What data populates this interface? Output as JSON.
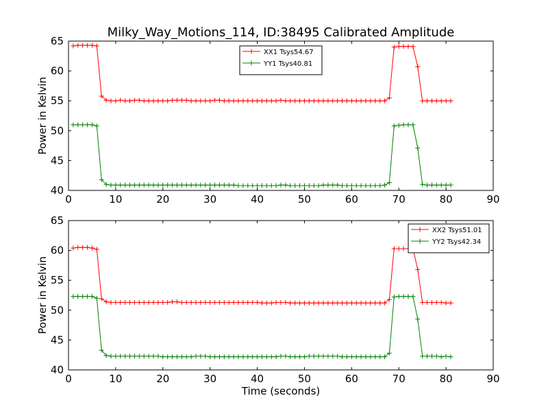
{
  "title": "Milky_Way_Motions_114, ID:38495 Calibrated Amplitude",
  "xlabel": "Time (seconds)",
  "chart_data": [
    {
      "type": "line",
      "title": "Milky_Way_Motions_114, ID:38495 Calibrated Amplitude",
      "xlabel": "",
      "ylabel": "Power in Kelvin",
      "xlim": [
        0,
        90
      ],
      "ylim": [
        40,
        65
      ],
      "xticks": [
        0,
        10,
        20,
        30,
        40,
        50,
        60,
        70,
        80,
        90
      ],
      "yticks": [
        40,
        45,
        50,
        55,
        60,
        65
      ],
      "grid": false,
      "legend_position": "top-center",
      "series": [
        {
          "name": "XX1 Tsys54.67",
          "color": "#ff0000",
          "x": [
            1,
            2,
            3,
            4,
            5,
            6,
            7,
            8,
            9,
            10,
            11,
            12,
            13,
            14,
            15,
            16,
            17,
            18,
            19,
            20,
            21,
            22,
            23,
            24,
            25,
            26,
            27,
            28,
            29,
            30,
            31,
            32,
            33,
            34,
            35,
            36,
            37,
            38,
            39,
            40,
            41,
            42,
            43,
            44,
            45,
            46,
            47,
            48,
            49,
            50,
            51,
            52,
            53,
            54,
            55,
            56,
            57,
            58,
            59,
            60,
            61,
            62,
            63,
            64,
            65,
            66,
            67,
            68,
            69,
            70,
            71,
            72,
            73,
            74,
            75,
            76,
            77,
            78,
            79,
            80,
            81
          ],
          "y": [
            64.2,
            64.3,
            64.3,
            64.3,
            64.3,
            64.2,
            55.8,
            55.1,
            55.0,
            55.0,
            55.1,
            55.0,
            55.0,
            55.1,
            55.1,
            55.0,
            55.0,
            55.0,
            55.0,
            55.0,
            55.0,
            55.1,
            55.1,
            55.1,
            55.1,
            55.0,
            55.0,
            55.0,
            55.0,
            55.0,
            55.1,
            55.1,
            55.0,
            55.0,
            55.0,
            55.0,
            55.0,
            55.0,
            55.0,
            55.0,
            55.0,
            55.0,
            55.0,
            55.0,
            55.1,
            55.0,
            55.0,
            55.0,
            55.0,
            55.0,
            55.0,
            55.0,
            55.0,
            55.0,
            55.0,
            55.0,
            55.0,
            55.0,
            55.0,
            55.0,
            55.0,
            55.0,
            55.0,
            55.0,
            55.0,
            55.0,
            55.0,
            55.5,
            64.0,
            64.1,
            64.1,
            64.1,
            64.1,
            60.7,
            55.0,
            55.0,
            55.0,
            55.0,
            55.0,
            55.0,
            55.0
          ]
        },
        {
          "name": "YY1 Tsys40.81",
          "color": "#008000",
          "x": [
            1,
            2,
            3,
            4,
            5,
            6,
            7,
            8,
            9,
            10,
            11,
            12,
            13,
            14,
            15,
            16,
            17,
            18,
            19,
            20,
            21,
            22,
            23,
            24,
            25,
            26,
            27,
            28,
            29,
            30,
            31,
            32,
            33,
            34,
            35,
            36,
            37,
            38,
            39,
            40,
            41,
            42,
            43,
            44,
            45,
            46,
            47,
            48,
            49,
            50,
            51,
            52,
            53,
            54,
            55,
            56,
            57,
            58,
            59,
            60,
            61,
            62,
            63,
            64,
            65,
            66,
            67,
            68,
            69,
            70,
            71,
            72,
            73,
            74,
            75,
            76,
            77,
            78,
            79,
            80,
            81
          ],
          "y": [
            51.0,
            51.0,
            51.0,
            51.0,
            51.0,
            50.8,
            41.8,
            41.0,
            40.9,
            40.9,
            40.9,
            40.9,
            40.9,
            40.9,
            40.9,
            40.9,
            40.9,
            40.9,
            40.9,
            40.9,
            40.9,
            40.9,
            40.9,
            40.9,
            40.9,
            40.9,
            40.9,
            40.9,
            40.9,
            40.9,
            40.9,
            40.9,
            40.9,
            40.9,
            40.9,
            40.8,
            40.8,
            40.8,
            40.8,
            40.8,
            40.8,
            40.8,
            40.8,
            40.8,
            40.9,
            40.9,
            40.8,
            40.8,
            40.8,
            40.8,
            40.8,
            40.8,
            40.8,
            40.9,
            40.9,
            40.9,
            40.9,
            40.8,
            40.8,
            40.8,
            40.8,
            40.8,
            40.8,
            40.8,
            40.8,
            40.8,
            40.9,
            41.3,
            50.8,
            50.9,
            51.0,
            51.0,
            51.0,
            47.1,
            41.0,
            40.9,
            40.9,
            40.9,
            40.9,
            40.9,
            40.9
          ]
        }
      ]
    },
    {
      "type": "line",
      "title": "",
      "xlabel": "Time (seconds)",
      "ylabel": "Power in Kelvin",
      "xlim": [
        0,
        90
      ],
      "ylim": [
        40,
        65
      ],
      "xticks": [
        0,
        10,
        20,
        30,
        40,
        50,
        60,
        70,
        80,
        90
      ],
      "yticks": [
        40,
        45,
        50,
        55,
        60,
        65
      ],
      "grid": false,
      "legend_position": "top-right",
      "series": [
        {
          "name": "XX2 Tsys51.01",
          "color": "#ff0000",
          "x": [
            1,
            2,
            3,
            4,
            5,
            6,
            7,
            8,
            9,
            10,
            11,
            12,
            13,
            14,
            15,
            16,
            17,
            18,
            19,
            20,
            21,
            22,
            23,
            24,
            25,
            26,
            27,
            28,
            29,
            30,
            31,
            32,
            33,
            34,
            35,
            36,
            37,
            38,
            39,
            40,
            41,
            42,
            43,
            44,
            45,
            46,
            47,
            48,
            49,
            50,
            51,
            52,
            53,
            54,
            55,
            56,
            57,
            58,
            59,
            60,
            61,
            62,
            63,
            64,
            65,
            66,
            67,
            68,
            69,
            70,
            71,
            72,
            73,
            74,
            75,
            76,
            77,
            78,
            79,
            80,
            81
          ],
          "y": [
            60.4,
            60.5,
            60.5,
            60.5,
            60.4,
            60.2,
            51.9,
            51.4,
            51.3,
            51.3,
            51.3,
            51.3,
            51.3,
            51.3,
            51.3,
            51.3,
            51.3,
            51.3,
            51.3,
            51.3,
            51.3,
            51.4,
            51.4,
            51.3,
            51.3,
            51.3,
            51.3,
            51.3,
            51.3,
            51.3,
            51.3,
            51.3,
            51.3,
            51.3,
            51.3,
            51.3,
            51.3,
            51.3,
            51.3,
            51.3,
            51.2,
            51.2,
            51.2,
            51.3,
            51.3,
            51.3,
            51.2,
            51.2,
            51.2,
            51.2,
            51.2,
            51.2,
            51.2,
            51.2,
            51.2,
            51.2,
            51.2,
            51.2,
            51.2,
            51.2,
            51.2,
            51.2,
            51.2,
            51.2,
            51.2,
            51.2,
            51.2,
            51.8,
            60.3,
            60.3,
            60.3,
            60.3,
            60.3,
            56.8,
            51.3,
            51.3,
            51.3,
            51.3,
            51.3,
            51.2,
            51.2
          ]
        },
        {
          "name": "YY2 Tsys42.34",
          "color": "#008000",
          "x": [
            1,
            2,
            3,
            4,
            5,
            6,
            7,
            8,
            9,
            10,
            11,
            12,
            13,
            14,
            15,
            16,
            17,
            18,
            19,
            20,
            21,
            22,
            23,
            24,
            25,
            26,
            27,
            28,
            29,
            30,
            31,
            32,
            33,
            34,
            35,
            36,
            37,
            38,
            39,
            40,
            41,
            42,
            43,
            44,
            45,
            46,
            47,
            48,
            49,
            50,
            51,
            52,
            53,
            54,
            55,
            56,
            57,
            58,
            59,
            60,
            61,
            62,
            63,
            64,
            65,
            66,
            67,
            68,
            69,
            70,
            71,
            72,
            73,
            74,
            75,
            76,
            77,
            78,
            79,
            80,
            81
          ],
          "y": [
            52.3,
            52.3,
            52.3,
            52.3,
            52.3,
            52.0,
            43.3,
            42.4,
            42.3,
            42.3,
            42.3,
            42.3,
            42.3,
            42.3,
            42.3,
            42.3,
            42.3,
            42.3,
            42.3,
            42.2,
            42.2,
            42.2,
            42.2,
            42.2,
            42.2,
            42.2,
            42.3,
            42.3,
            42.3,
            42.2,
            42.2,
            42.2,
            42.2,
            42.2,
            42.2,
            42.2,
            42.2,
            42.2,
            42.2,
            42.2,
            42.2,
            42.2,
            42.2,
            42.2,
            42.3,
            42.3,
            42.2,
            42.2,
            42.2,
            42.2,
            42.3,
            42.3,
            42.3,
            42.3,
            42.3,
            42.3,
            42.3,
            42.2,
            42.2,
            42.2,
            42.2,
            42.2,
            42.2,
            42.2,
            42.2,
            42.2,
            42.2,
            42.8,
            52.2,
            52.3,
            52.3,
            52.3,
            52.3,
            48.5,
            42.3,
            42.3,
            42.3,
            42.3,
            42.2,
            42.3,
            42.2
          ]
        }
      ]
    }
  ]
}
